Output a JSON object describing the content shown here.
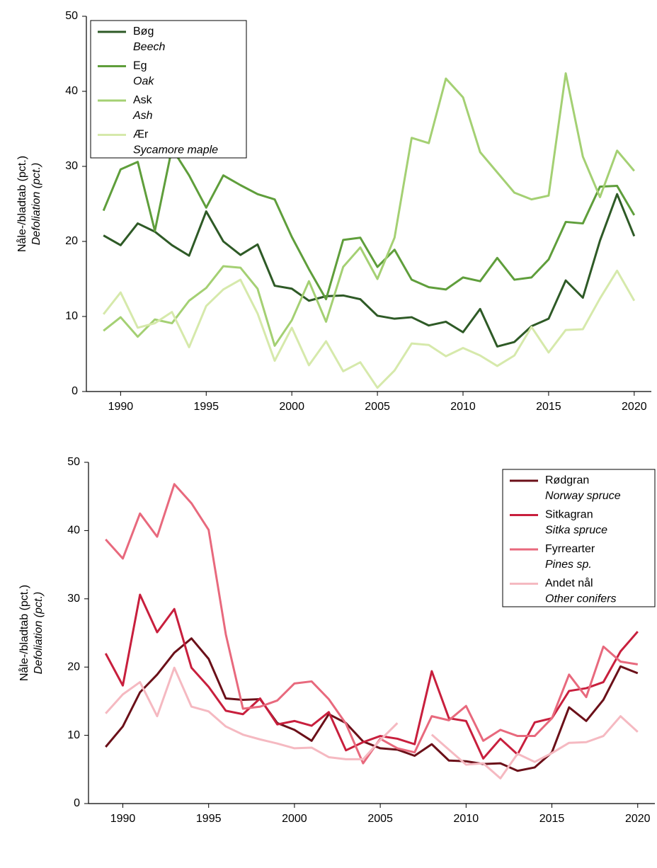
{
  "chart_data": [
    {
      "type": "line",
      "ylabel": "Nåle-/bladtab (pct.)",
      "ylabel_en": "Defoliation (pct.)",
      "x": [
        1989,
        1990,
        1991,
        1992,
        1993,
        1994,
        1995,
        1996,
        1997,
        1998,
        1999,
        2000,
        2001,
        2002,
        2003,
        2004,
        2005,
        2006,
        2007,
        2008,
        2009,
        2010,
        2011,
        2012,
        2013,
        2014,
        2015,
        2016,
        2017,
        2018,
        2019,
        2020
      ],
      "xlim": [
        1988,
        2021
      ],
      "xticks": [
        1990,
        1995,
        2000,
        2005,
        2010,
        2015,
        2020
      ],
      "ylim": [
        0,
        50
      ],
      "yticks": [
        0,
        10,
        20,
        30,
        40,
        50
      ],
      "legend": "upper left",
      "series": [
        {
          "name": "Bøg",
          "name_en": "Beech",
          "color": "#2e5a26",
          "values": [
            20.8,
            19.5,
            22.4,
            21.3,
            19.5,
            18.1,
            24,
            20,
            18.2,
            19.6,
            14.1,
            13.7,
            12.1,
            12.7,
            12.8,
            12.3,
            10.1,
            9.7,
            9.9,
            8.8,
            9.3,
            7.9,
            11,
            6,
            6.6,
            8.7,
            9.7,
            14.8,
            12.5,
            20.1,
            26.3,
            20.7
          ]
        },
        {
          "name": "Eg",
          "name_en": "Oak",
          "color": "#5f9e3b",
          "values": [
            24.1,
            29.6,
            30.6,
            21.4,
            32.4,
            28.8,
            24.5,
            28.8,
            27.5,
            26.3,
            25.6,
            20.6,
            16.3,
            12.3,
            20.2,
            20.5,
            16.6,
            18.9,
            14.9,
            13.9,
            13.6,
            15.2,
            14.7,
            17.8,
            14.9,
            15.2,
            17.6,
            22.6,
            22.4,
            27.3,
            27.4,
            23.5
          ]
        },
        {
          "name": "Ask",
          "name_en": "Ash",
          "color": "#a4d073",
          "values": [
            8.1,
            9.9,
            7.3,
            9.6,
            9.1,
            12.1,
            13.8,
            16.7,
            16.5,
            13.7,
            6.1,
            9.5,
            14.7,
            9.3,
            16.6,
            19.2,
            15,
            20.5,
            33.8,
            33.1,
            41.7,
            39.2,
            31.9,
            29.2,
            26.5,
            25.6,
            26.1,
            42.4,
            31.3,
            25.9,
            32.1,
            29.4
          ]
        },
        {
          "name": "Ær",
          "name_en": "Sycamore maple",
          "color": "#d6e9ab",
          "values": [
            10.3,
            13.2,
            8.5,
            9.1,
            10.6,
            5.9,
            11.4,
            13.6,
            14.9,
            10.4,
            4.1,
            8.5,
            3.5,
            6.7,
            2.7,
            3.9,
            0.5,
            2.8,
            6.4,
            6.2,
            4.7,
            5.8,
            4.8,
            3.4,
            4.8,
            8.6,
            5.2,
            8.2,
            8.3,
            12.4,
            16.1,
            12.1
          ]
        }
      ]
    },
    {
      "type": "line",
      "ylabel": "Nåle-/bladtab (pct.)",
      "ylabel_en": "Defoliation (pct.)",
      "x": [
        1989,
        1990,
        1991,
        1992,
        1993,
        1994,
        1995,
        1996,
        1997,
        1998,
        1999,
        2000,
        2001,
        2002,
        2003,
        2004,
        2005,
        2006,
        2007,
        2008,
        2009,
        2010,
        2011,
        2012,
        2013,
        2014,
        2015,
        2016,
        2017,
        2018,
        2019,
        2020
      ],
      "xlim": [
        1988,
        2021
      ],
      "xticks": [
        1990,
        1995,
        2000,
        2005,
        2010,
        2015,
        2020
      ],
      "ylim": [
        0,
        50
      ],
      "yticks": [
        0,
        10,
        20,
        30,
        40,
        50
      ],
      "legend": "upper right",
      "series": [
        {
          "name": "Rødgran",
          "name_en": "Norway spruce",
          "color": "#6b1019",
          "values": [
            8.3,
            11.3,
            16.3,
            18.9,
            22.1,
            24.2,
            21.2,
            15.4,
            15.2,
            15.3,
            11.8,
            10.8,
            9.2,
            13.1,
            11.8,
            9.1,
            8.1,
            7.9,
            7.0,
            8.7,
            6.3,
            6.2,
            5.8,
            5.9,
            4.8,
            5.3,
            7.5,
            14.1,
            12.1,
            15.2,
            20.1,
            19.1
          ]
        },
        {
          "name": "Sitkagran",
          "name_en": "Sitka spruce",
          "color": "#c81f3d",
          "values": [
            22,
            17.3,
            30.6,
            25.1,
            28.5,
            19.9,
            17.1,
            13.6,
            13.1,
            15.4,
            11.6,
            12.1,
            11.4,
            13.4,
            7.8,
            9.0,
            9.9,
            9.5,
            8.7,
            19.4,
            12.5,
            12.1,
            6.6,
            9.5,
            7.2,
            11.9,
            12.5,
            16.5,
            16.9,
            17.8,
            22.3,
            25.2
          ]
        },
        {
          "name": "Fyrrearter",
          "name_en": "Pines sp.",
          "color": "#e8697d",
          "values": [
            38.7,
            35.9,
            42.5,
            39.1,
            46.8,
            44.0,
            40.1,
            24.8,
            13.9,
            14.2,
            15.1,
            17.6,
            17.9,
            15.3,
            11.7,
            5.9,
            9.5,
            8.1,
            7.5,
            12.8,
            12.2,
            14.3,
            9.2,
            10.8,
            9.9,
            9.9,
            12.5,
            18.9,
            15.6,
            23.0,
            20.8,
            20.4
          ]
        },
        {
          "name": "Andet nål",
          "name_en": "Other conifers",
          "color": "#f5b9c1",
          "values": [
            13.2,
            16.0,
            17.8,
            12.8,
            19.9,
            14.2,
            13.5,
            11.3,
            10.1,
            9.4,
            8.8,
            8.1,
            8.2,
            6.8,
            6.5,
            6.5,
            9.3,
            11.8,
            null,
            10.1,
            7.9,
            5.7,
            5.9,
            3.7,
            7.3,
            6.1,
            7.4,
            8.9,
            9.0,
            9.9,
            12.8,
            10.5
          ]
        }
      ]
    }
  ]
}
